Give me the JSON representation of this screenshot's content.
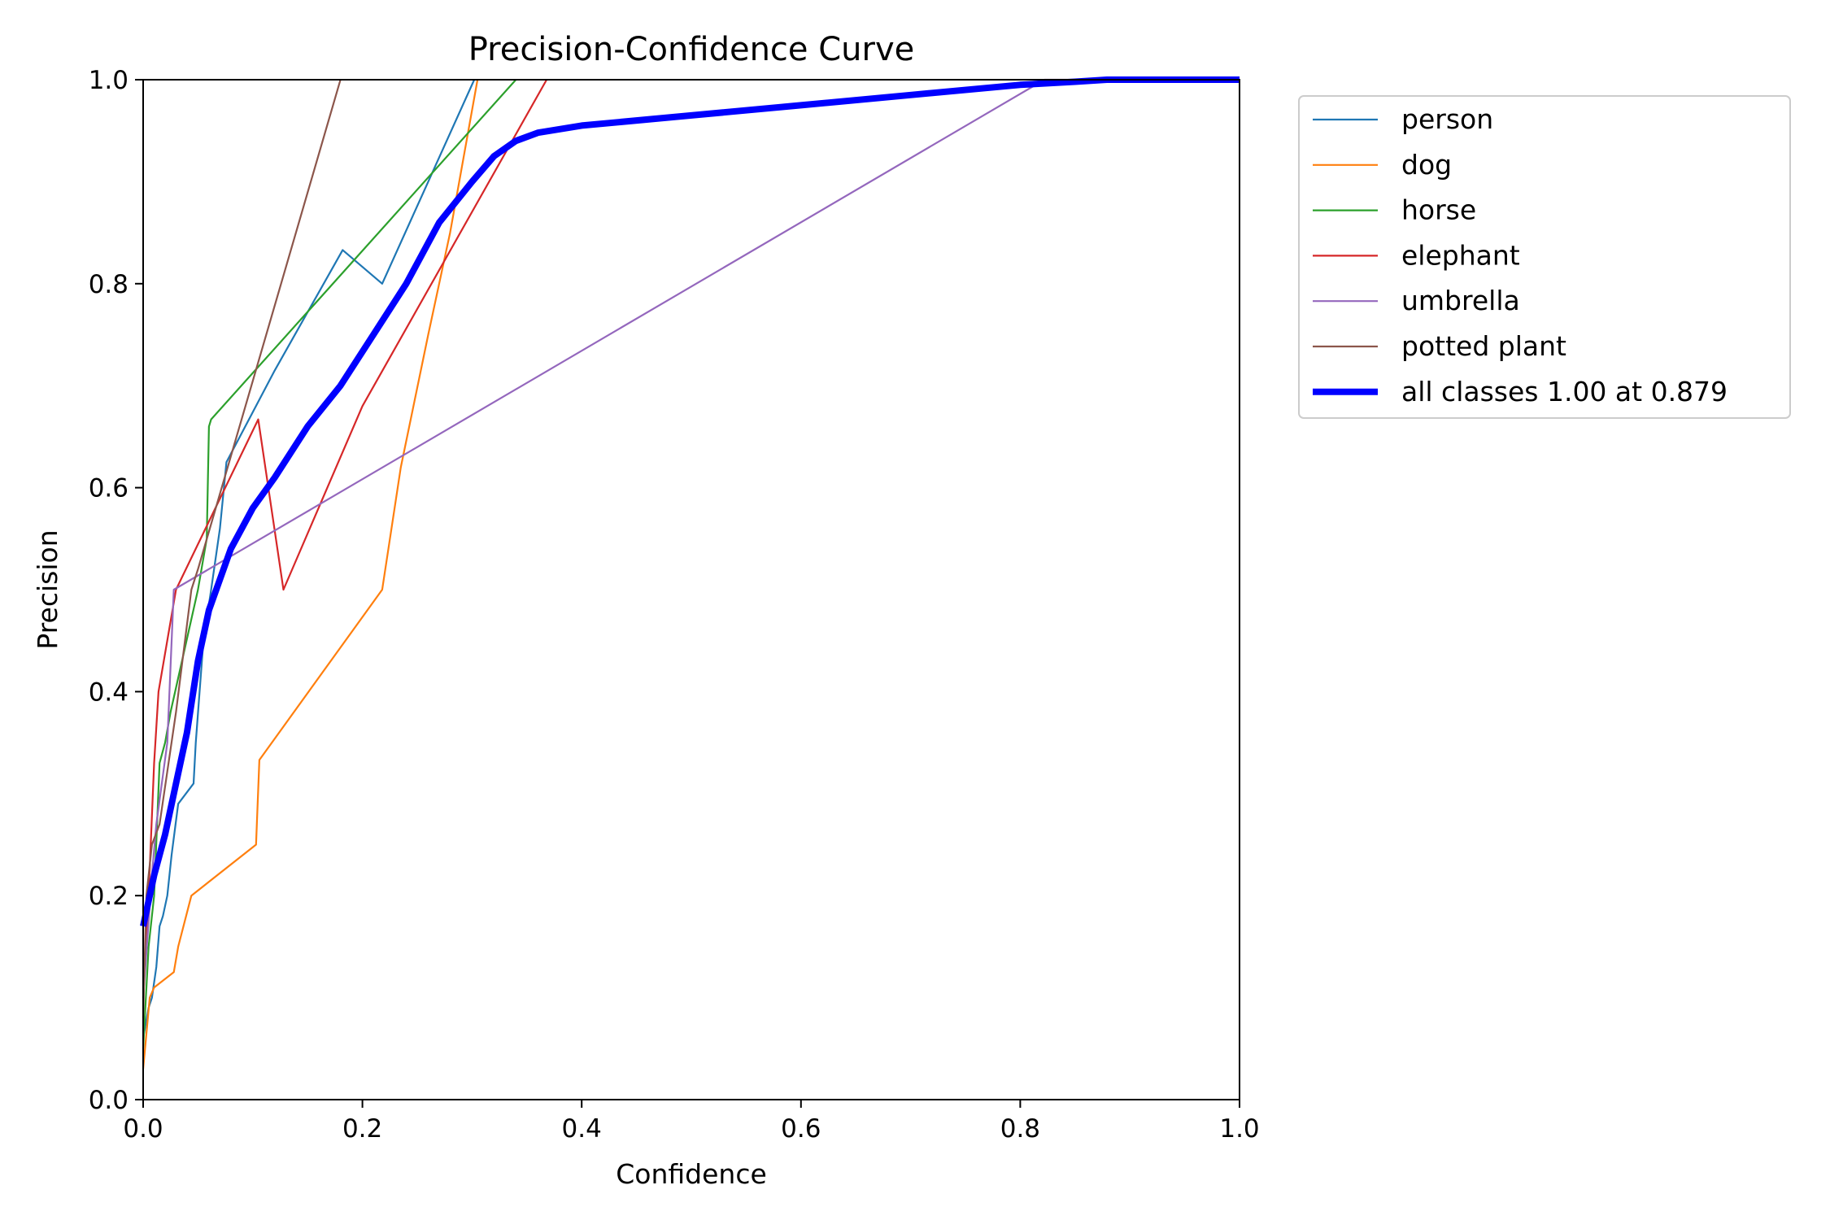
{
  "chart_data": {
    "type": "line",
    "title": "Precision-Confidence Curve",
    "xlabel": "Confidence",
    "ylabel": "Precision",
    "xlim": [
      0.0,
      1.0
    ],
    "ylim": [
      0.0,
      1.0
    ],
    "xticks": [
      "0.0",
      "0.2",
      "0.4",
      "0.6",
      "0.8",
      "1.0"
    ],
    "yticks": [
      "0.0",
      "0.2",
      "0.4",
      "0.6",
      "0.8",
      "1.0"
    ],
    "grid": false,
    "legend_position": "outside-top-right",
    "series": [
      {
        "name": "person",
        "color": "#1f77b4",
        "x": [
          0.0,
          0.005,
          0.008,
          0.012,
          0.015,
          0.018,
          0.022,
          0.026,
          0.032,
          0.046,
          0.048,
          0.055,
          0.062,
          0.07,
          0.076,
          0.12,
          0.182,
          0.218,
          0.26,
          0.302
        ],
        "y": [
          0.06,
          0.09,
          0.1,
          0.13,
          0.17,
          0.18,
          0.2,
          0.24,
          0.29,
          0.31,
          0.35,
          0.45,
          0.5,
          0.56,
          0.625,
          0.715,
          0.833,
          0.8,
          0.9,
          1.0
        ]
      },
      {
        "name": "dog",
        "color": "#ff7f0e",
        "x": [
          0.0,
          0.006,
          0.01,
          0.028,
          0.032,
          0.044,
          0.103,
          0.106,
          0.218,
          0.235,
          0.26,
          0.28,
          0.305
        ],
        "y": [
          0.03,
          0.1,
          0.11,
          0.125,
          0.15,
          0.2,
          0.25,
          0.333,
          0.5,
          0.62,
          0.75,
          0.85,
          1.0
        ]
      },
      {
        "name": "horse",
        "color": "#2ca02c",
        "x": [
          0.0,
          0.005,
          0.01,
          0.015,
          0.02,
          0.025,
          0.05,
          0.058,
          0.06,
          0.062,
          0.34
        ],
        "y": [
          0.05,
          0.15,
          0.2,
          0.33,
          0.35,
          0.38,
          0.5,
          0.55,
          0.66,
          0.667,
          1.0
        ]
      },
      {
        "name": "elephant",
        "color": "#d62728",
        "x": [
          0.0,
          0.005,
          0.01,
          0.014,
          0.03,
          0.105,
          0.128,
          0.2,
          0.368
        ],
        "y": [
          0.1,
          0.2,
          0.33,
          0.4,
          0.5,
          0.667,
          0.5,
          0.68,
          1.0
        ]
      },
      {
        "name": "umbrella",
        "color": "#9467bd",
        "x": [
          0.0,
          0.008,
          0.012,
          0.022,
          0.028,
          0.822,
          1.0
        ],
        "y": [
          0.1,
          0.22,
          0.27,
          0.35,
          0.5,
          1.0,
          1.0
        ]
      },
      {
        "name": "potted plant",
        "color": "#8c564b",
        "x": [
          0.0,
          0.003,
          0.008,
          0.015,
          0.03,
          0.044,
          0.05,
          0.18
        ],
        "y": [
          0.08,
          0.2,
          0.25,
          0.27,
          0.38,
          0.5,
          0.52,
          1.0
        ]
      },
      {
        "name": "all classes 1.00 at 0.879",
        "color": "#0000ff",
        "bold": true,
        "x": [
          0.0,
          0.01,
          0.02,
          0.03,
          0.04,
          0.05,
          0.06,
          0.08,
          0.1,
          0.12,
          0.15,
          0.18,
          0.21,
          0.24,
          0.27,
          0.3,
          0.32,
          0.34,
          0.36,
          0.4,
          0.5,
          0.6,
          0.7,
          0.8,
          0.85,
          0.879,
          1.0
        ],
        "y": [
          0.17,
          0.22,
          0.26,
          0.31,
          0.36,
          0.43,
          0.48,
          0.54,
          0.58,
          0.61,
          0.66,
          0.7,
          0.75,
          0.8,
          0.86,
          0.9,
          0.925,
          0.94,
          0.948,
          0.955,
          0.965,
          0.975,
          0.985,
          0.995,
          0.998,
          1.0,
          1.0
        ]
      }
    ]
  }
}
